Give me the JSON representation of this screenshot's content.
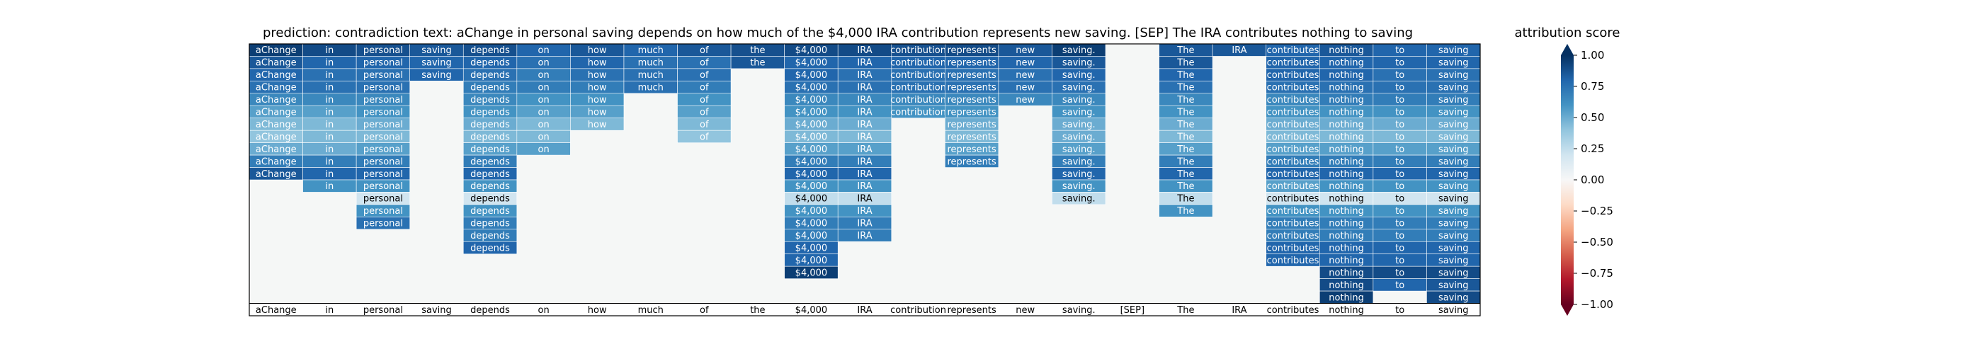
{
  "chart_data": {
    "type": "heatmap",
    "title": "prediction:  contradiction     text:  aChange in personal saving depends on how much of the $4,000 IRA contribution represents new saving. [SEP] The IRA contributes nothing to saving",
    "tokens": [
      "aChange",
      "in",
      "personal",
      "saving",
      "depends",
      "on",
      "how",
      "much",
      "of",
      "the",
      "$4,000",
      "IRA",
      "contribution",
      "represents",
      "new",
      "saving.",
      "[SEP]",
      "The",
      "IRA",
      "contributes",
      "nothing",
      "to",
      "saving"
    ],
    "values": [
      [
        0.95,
        0.9,
        0.88,
        0.85,
        0.88,
        0.8,
        0.85,
        0.8,
        0.85,
        0.88,
        0.9,
        0.9,
        0.88,
        0.9,
        0.85,
        0.95,
        null,
        0.85,
        0.85,
        0.8,
        0.85,
        0.8,
        0.8
      ],
      [
        0.85,
        0.8,
        0.8,
        0.8,
        0.8,
        0.75,
        0.8,
        0.75,
        0.75,
        0.85,
        0.8,
        0.8,
        0.8,
        0.8,
        0.8,
        0.85,
        null,
        0.85,
        null,
        0.8,
        0.8,
        0.8,
        0.8
      ],
      [
        0.8,
        0.75,
        0.75,
        0.8,
        0.75,
        0.7,
        0.75,
        0.75,
        0.75,
        null,
        0.8,
        0.75,
        0.75,
        0.75,
        0.75,
        0.8,
        null,
        0.8,
        null,
        0.8,
        0.8,
        0.75,
        0.75
      ],
      [
        0.75,
        0.75,
        0.75,
        null,
        0.7,
        0.7,
        0.7,
        0.75,
        0.7,
        null,
        0.75,
        0.75,
        0.75,
        0.75,
        0.75,
        0.75,
        null,
        0.75,
        null,
        0.75,
        0.75,
        0.75,
        0.75
      ],
      [
        0.65,
        0.65,
        0.65,
        null,
        0.65,
        0.6,
        0.6,
        null,
        0.6,
        null,
        0.65,
        0.65,
        0.65,
        0.65,
        0.65,
        0.65,
        null,
        0.65,
        null,
        0.65,
        0.7,
        0.7,
        0.7
      ],
      [
        0.55,
        0.55,
        0.6,
        null,
        0.6,
        0.55,
        0.55,
        null,
        0.55,
        null,
        0.6,
        0.6,
        0.6,
        0.6,
        null,
        0.6,
        null,
        0.6,
        null,
        0.6,
        0.6,
        0.6,
        0.6
      ],
      [
        0.45,
        0.45,
        0.5,
        null,
        0.5,
        0.45,
        0.45,
        null,
        0.45,
        null,
        0.5,
        0.5,
        null,
        0.5,
        null,
        0.5,
        null,
        0.5,
        null,
        0.5,
        0.5,
        0.5,
        0.5
      ],
      [
        0.4,
        0.45,
        0.45,
        null,
        0.45,
        0.45,
        null,
        null,
        0.4,
        null,
        0.45,
        0.45,
        null,
        0.45,
        null,
        0.5,
        null,
        0.45,
        null,
        0.45,
        0.45,
        0.45,
        0.45
      ],
      [
        0.5,
        0.5,
        0.55,
        null,
        0.55,
        0.55,
        null,
        null,
        null,
        null,
        0.55,
        0.55,
        null,
        0.55,
        null,
        0.55,
        null,
        0.55,
        null,
        0.55,
        0.55,
        0.55,
        0.55
      ],
      [
        0.7,
        0.7,
        0.7,
        null,
        0.7,
        null,
        null,
        null,
        null,
        null,
        0.7,
        0.7,
        null,
        0.7,
        null,
        0.7,
        null,
        0.7,
        null,
        0.7,
        0.7,
        0.7,
        0.7
      ],
      [
        0.85,
        0.8,
        0.8,
        null,
        0.8,
        null,
        null,
        null,
        null,
        null,
        0.8,
        0.8,
        null,
        null,
        null,
        0.8,
        null,
        0.8,
        null,
        0.8,
        0.8,
        0.8,
        0.8
      ],
      [
        null,
        0.6,
        0.6,
        null,
        0.6,
        null,
        null,
        null,
        null,
        null,
        0.6,
        0.6,
        null,
        null,
        null,
        0.6,
        null,
        0.6,
        null,
        0.55,
        0.6,
        0.6,
        0.6
      ],
      [
        null,
        null,
        0.2,
        null,
        0.2,
        null,
        null,
        null,
        null,
        null,
        0.25,
        0.25,
        null,
        null,
        null,
        0.25,
        null,
        0.25,
        null,
        0.2,
        0.2,
        0.2,
        0.2
      ],
      [
        null,
        null,
        0.6,
        null,
        0.6,
        null,
        null,
        null,
        null,
        null,
        0.6,
        0.6,
        null,
        null,
        null,
        null,
        null,
        0.6,
        null,
        0.6,
        0.6,
        0.6,
        0.6
      ],
      [
        null,
        null,
        0.75,
        null,
        0.7,
        null,
        null,
        null,
        null,
        null,
        0.7,
        0.7,
        null,
        null,
        null,
        null,
        null,
        null,
        null,
        0.7,
        0.7,
        0.7,
        0.7
      ],
      [
        null,
        null,
        null,
        null,
        0.7,
        null,
        null,
        null,
        null,
        null,
        0.7,
        0.7,
        null,
        null,
        null,
        null,
        null,
        null,
        null,
        0.7,
        0.7,
        0.7,
        0.7
      ],
      [
        null,
        null,
        null,
        null,
        0.8,
        null,
        null,
        null,
        null,
        null,
        0.8,
        null,
        null,
        null,
        null,
        null,
        null,
        null,
        null,
        0.8,
        0.8,
        0.8,
        0.8
      ],
      [
        null,
        null,
        null,
        null,
        null,
        null,
        null,
        null,
        null,
        null,
        0.8,
        null,
        null,
        null,
        null,
        null,
        null,
        null,
        null,
        0.8,
        0.8,
        0.8,
        0.8
      ],
      [
        null,
        null,
        null,
        null,
        null,
        null,
        null,
        null,
        null,
        null,
        0.95,
        null,
        null,
        null,
        null,
        null,
        null,
        null,
        null,
        null,
        0.9,
        0.9,
        0.9
      ],
      [
        null,
        null,
        null,
        null,
        null,
        null,
        null,
        null,
        null,
        null,
        null,
        null,
        null,
        null,
        null,
        null,
        null,
        null,
        null,
        null,
        0.9,
        0.8,
        0.85
      ],
      [
        null,
        null,
        null,
        null,
        null,
        null,
        null,
        null,
        null,
        null,
        null,
        null,
        null,
        null,
        null,
        null,
        null,
        null,
        null,
        null,
        0.95,
        null,
        0.9
      ]
    ],
    "colorbar": {
      "label": "attribution score",
      "ticks": [
        1.0,
        0.75,
        0.5,
        0.25,
        0.0,
        -0.25,
        -0.5,
        -0.75,
        -1.0
      ],
      "tick_labels": [
        "1.00",
        "0.75",
        "0.50",
        "0.25",
        "0.00",
        "−0.25",
        "−0.50",
        "−0.75",
        "−1.00"
      ],
      "vmin": -1.0,
      "vmax": 1.0,
      "colormap": "RdBu"
    },
    "colors": {
      "empty_cell": "#f5f7f6",
      "frame": "#000000",
      "cell_border": "#ffffff"
    },
    "grid": false
  }
}
